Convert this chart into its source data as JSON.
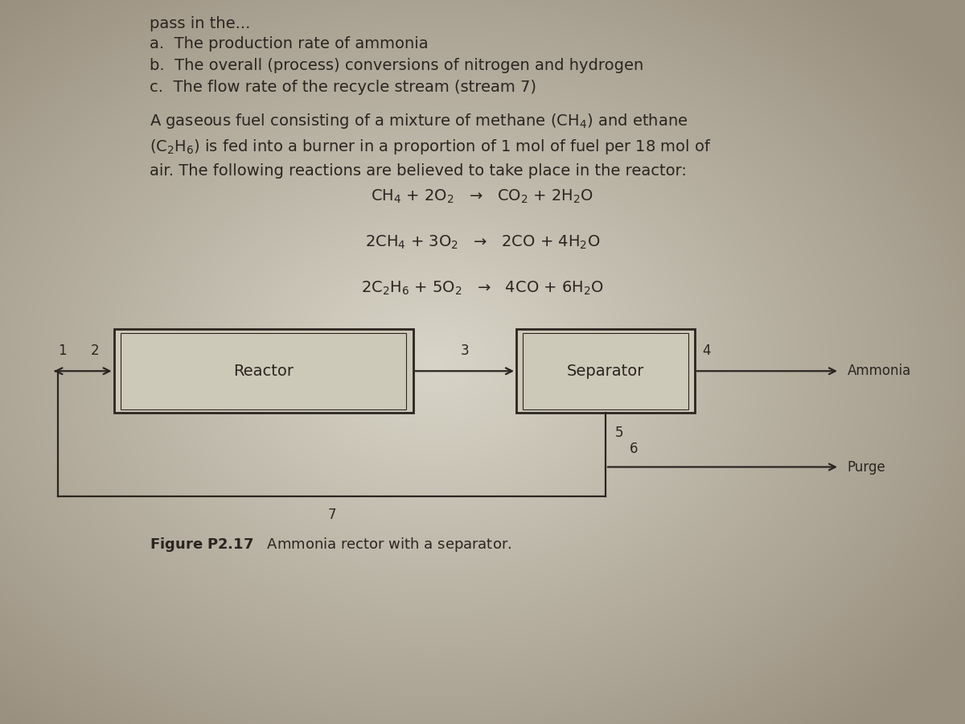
{
  "bg_color_center": "#d8d5c8",
  "bg_color_edge": "#9a9080",
  "text_color": "#2a2520",
  "font_size_body": 14,
  "font_size_reaction": 14,
  "font_size_stream": 12,
  "font_size_fig": 13,
  "reactor_label": "Reactor",
  "separator_label": "Separator",
  "ammonia_label": "Ammonia",
  "purge_label": "Purge",
  "fig_caption_bold": "Figure P2.17",
  "fig_caption_rest": "   Ammonia rector with a separator.",
  "header_line0": "pass in the...",
  "header_line1": "a.  The production rate of ammonia",
  "header_line2": "b.  The overall (process) conversions of nitrogen and hydrogen",
  "header_line3": "c.  The flow rate of the recycle stream (stream 7)",
  "prob_line1": "A gaseous fuel consisting of a mixture of methane (CH$_4$) and ethane",
  "prob_line2": "(C$_2$H$_6$) is fed into a burner in a proportion of 1 mol of fuel per 18 mol of",
  "prob_line3": "air. The following reactions are believed to take place in the reactor:",
  "rxn1": "CH$_4$ + 2O$_2$   →   CO$_2$ + 2H$_2$O",
  "rxn2": "2CH$_4$ + 3O$_2$   →   2CO + 4H$_2$O",
  "rxn3": "2C$_2$H$_6$ + 5O$_2$   →   4CO + 6H$_2$O"
}
